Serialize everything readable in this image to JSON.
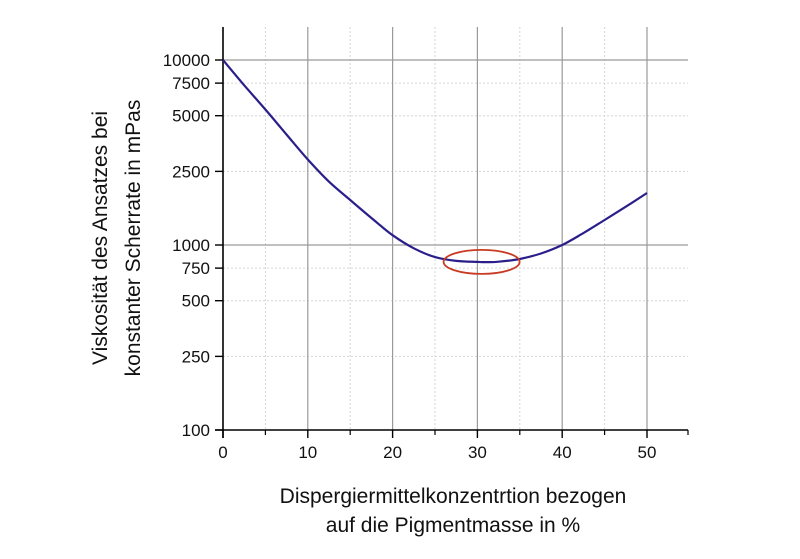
{
  "chart_data": {
    "type": "line",
    "title": "",
    "xlabel": [
      "Dispergiermittelkonzentrtion bezogen",
      "auf die Pigmentmasse in %"
    ],
    "ylabel": [
      "Viskosität des Ansatzes bei",
      "konstanter Scherrate in mPas"
    ],
    "x_scale": "linear",
    "y_scale": "log",
    "xlim": [
      0,
      55
    ],
    "ylim": [
      100,
      13000
    ],
    "x_ticks": [
      0,
      10,
      20,
      30,
      40,
      50
    ],
    "x_tick_labels": [
      "0",
      "10",
      "20",
      "30",
      "40",
      "50"
    ],
    "x_minor_ticks": [
      5,
      15,
      25,
      35,
      45,
      55
    ],
    "y_ticks": [
      100,
      250,
      500,
      750,
      1000,
      2500,
      5000,
      7500,
      10000
    ],
    "y_tick_labels": [
      "100",
      "250",
      "500",
      "750",
      "1000",
      "2500",
      "5000",
      "7500",
      "10000"
    ],
    "y_major_grid": [
      1000,
      10000
    ],
    "grid": true,
    "legend": null,
    "series": [
      {
        "name": "Viskosität",
        "color": "#2a1f8a",
        "x": [
          0,
          2.5,
          5,
          7.5,
          10,
          12.5,
          15,
          17.5,
          20,
          22.5,
          25,
          27.5,
          30,
          31,
          32.5,
          35,
          37.5,
          40,
          42.5,
          45,
          47.5,
          50
        ],
        "y": [
          10000,
          7300,
          5400,
          3950,
          2900,
          2200,
          1750,
          1400,
          1130,
          960,
          860,
          820,
          810,
          808,
          812,
          840,
          900,
          1000,
          1160,
          1365,
          1610,
          1910
        ]
      }
    ],
    "annotations": [
      {
        "type": "ellipse",
        "color": "#c83a22",
        "center_x": 30.5,
        "center_y": 810,
        "description": "minimum highlighted"
      }
    ]
  }
}
